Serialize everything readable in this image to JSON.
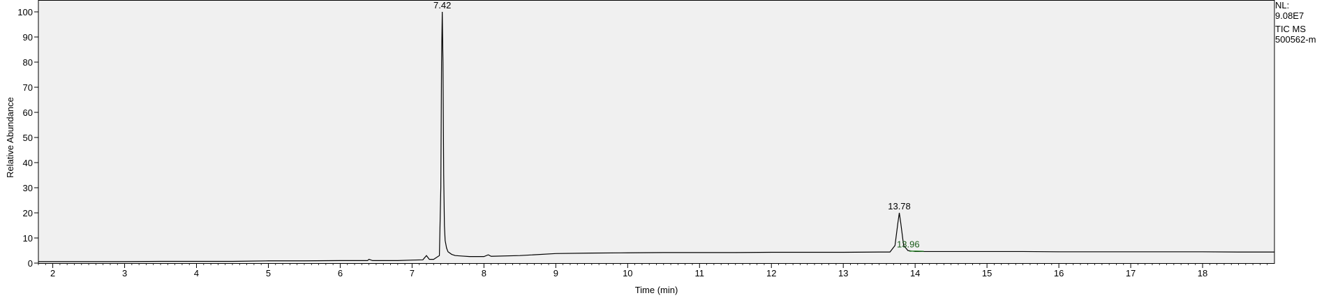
{
  "chart_data": {
    "type": "line",
    "xlabel": "Time (min)",
    "ylabel": "Relative Abundance",
    "xlim": [
      1.8,
      19.0
    ],
    "ylim": [
      0,
      100
    ],
    "x_ticks": [
      2,
      3,
      4,
      5,
      6,
      7,
      8,
      9,
      10,
      11,
      12,
      13,
      14,
      15,
      16,
      17,
      18
    ],
    "y_ticks": [
      0,
      10,
      20,
      30,
      40,
      50,
      60,
      70,
      80,
      90,
      100
    ],
    "grid": false,
    "colors": {
      "plot_background": "#f0f0f0",
      "trace": "#000000",
      "highlight_trace": "#2e8b2e",
      "peak_label": "#000000",
      "highlight_label": "#1a5c1a"
    },
    "series": [
      {
        "x": [
          1.8,
          2.5,
          3.0,
          3.5,
          4.0,
          4.5,
          5.0,
          5.5,
          6.0,
          6.38,
          6.4,
          6.45,
          6.8,
          7.0,
          7.15,
          7.2,
          7.24,
          7.3,
          7.38,
          7.4,
          7.41,
          7.42,
          7.43,
          7.44,
          7.45,
          7.46,
          7.48,
          7.5,
          7.55,
          7.6,
          7.7,
          7.8,
          8.0,
          8.06,
          8.1,
          8.5,
          9.0,
          9.5,
          10.0,
          10.5,
          11.0,
          11.5,
          12.0,
          12.5,
          13.0,
          13.5,
          13.65,
          13.72,
          13.76,
          13.78,
          13.8,
          13.84,
          13.9,
          14.0,
          14.5,
          15.0,
          15.5,
          16.0,
          16.5,
          17.0,
          17.5,
          18.0,
          18.5,
          19.0
        ],
        "y": [
          0.6,
          0.6,
          0.6,
          0.7,
          0.7,
          0.7,
          0.9,
          0.9,
          1.0,
          1.0,
          1.5,
          1.0,
          1.0,
          1.2,
          1.3,
          3.0,
          1.5,
          1.5,
          3.0,
          30.0,
          80.0,
          100.0,
          80.0,
          35.0,
          15.0,
          9.0,
          6.0,
          4.5,
          3.5,
          3.0,
          2.8,
          2.6,
          2.6,
          3.3,
          2.7,
          3.0,
          3.8,
          4.0,
          4.1,
          4.2,
          4.2,
          4.2,
          4.3,
          4.3,
          4.3,
          4.4,
          4.4,
          7.0,
          16.0,
          20.0,
          16.0,
          7.0,
          5.0,
          4.6,
          4.6,
          4.6,
          4.6,
          4.5,
          4.5,
          4.5,
          4.5,
          4.5,
          4.4,
          4.4
        ]
      }
    ],
    "highlight_segment": {
      "x": [
        13.92,
        14.0,
        14.12
      ],
      "y": [
        4.7,
        4.8,
        4.7
      ]
    },
    "peak_labels": [
      {
        "text": "7.42",
        "x": 7.42,
        "y": 100,
        "highlight": false
      },
      {
        "text": "13.78",
        "x": 13.78,
        "y": 20,
        "highlight": false
      },
      {
        "text": "13.96",
        "x": 13.96,
        "y": 4.8,
        "highlight": true
      }
    ]
  },
  "info": {
    "nl_label": "NL:",
    "nl_value": "9.08E7",
    "trace_type": "TIC  MS",
    "file_name": "500562-m"
  }
}
